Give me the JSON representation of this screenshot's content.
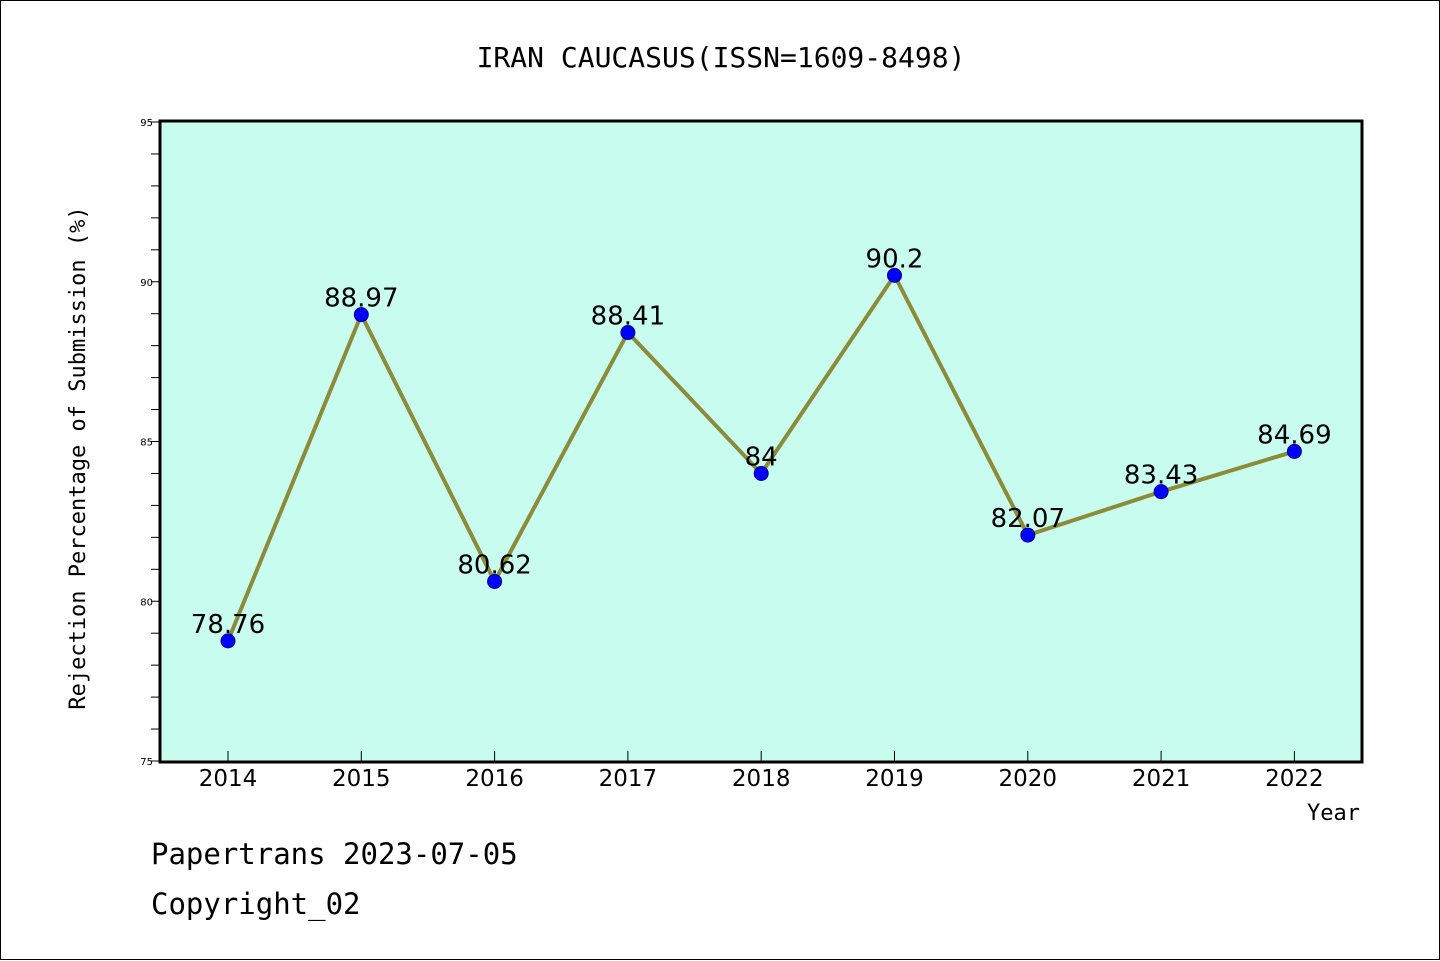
{
  "chart_data": {
    "type": "line",
    "title": "IRAN CAUCASUS(ISSN=1609-8498)",
    "xlabel": "Year",
    "ylabel": "Rejection Percentage of Submission (%)",
    "categories": [
      "2014",
      "2015",
      "2016",
      "2017",
      "2018",
      "2019",
      "2020",
      "2021",
      "2022"
    ],
    "values": [
      78.76,
      88.97,
      80.62,
      88.41,
      84,
      90.2,
      82.07,
      83.43,
      84.69
    ],
    "data_labels": [
      "78.76",
      "88.97",
      "80.62",
      "88.41",
      "84",
      "90.2",
      "82.07",
      "83.43",
      "84.69"
    ],
    "ylim": [
      75,
      95
    ],
    "y_ticks": [
      "75",
      "80",
      "85",
      "90",
      "95"
    ],
    "grid": false,
    "colors": {
      "plot_background": "#c8fcee",
      "line": "#8b8b3a",
      "marker": "#0000ff"
    }
  },
  "footer": {
    "line1": "Papertrans 2023-07-05",
    "line2": "Copyright_02"
  }
}
